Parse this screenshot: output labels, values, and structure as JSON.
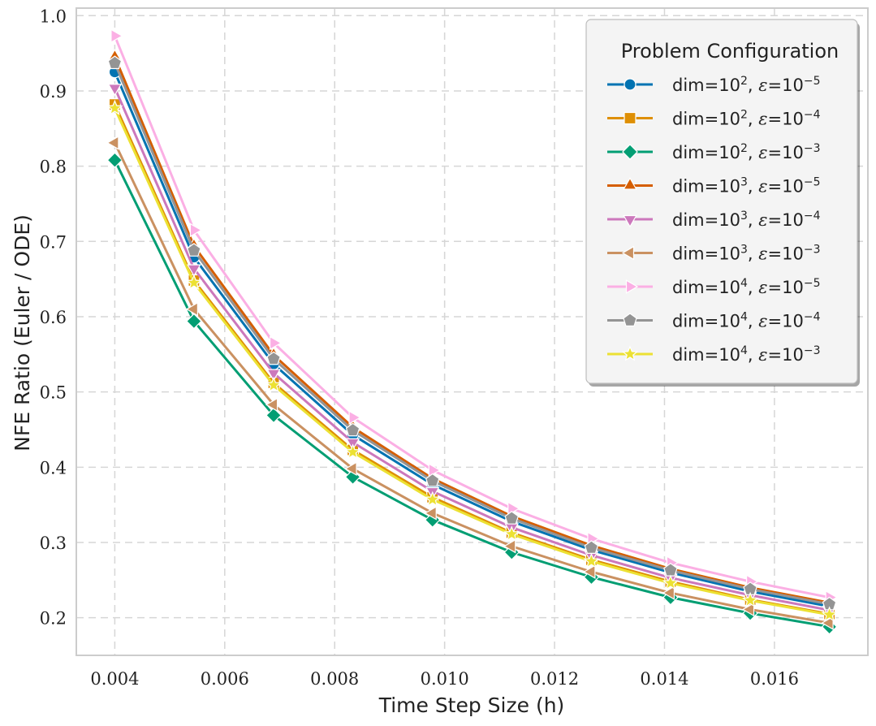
{
  "chart_data": {
    "type": "line",
    "title": "",
    "xlabel": "Time Step Size (h)",
    "ylabel": "NFE Ratio (Euler / ODE)",
    "xlim": [
      0.0033,
      0.0177
    ],
    "ylim": [
      0.15,
      1.01
    ],
    "xticks": [
      0.004,
      0.006,
      0.008,
      0.01,
      0.012,
      0.014,
      0.016
    ],
    "xtick_labels": [
      "0.004",
      "0.006",
      "0.008",
      "0.010",
      "0.012",
      "0.014",
      "0.016"
    ],
    "yticks": [
      0.2,
      0.3,
      0.4,
      0.5,
      0.6,
      0.7,
      0.8,
      0.9,
      1.0
    ],
    "ytick_labels": [
      "0.2",
      "0.3",
      "0.4",
      "0.5",
      "0.6",
      "0.7",
      "0.8",
      "0.9",
      "1.0"
    ],
    "grid": true,
    "legend_title": "Problem Configuration",
    "legend_position": "top-right",
    "x": [
      0.004,
      0.00544,
      0.00689,
      0.00833,
      0.00978,
      0.01122,
      0.01267,
      0.01411,
      0.01556,
      0.017
    ],
    "series": [
      {
        "name": "dim=10², ε=10⁻⁵",
        "dim_exp": "2",
        "eps_exp": "−5",
        "color": "#0173b2",
        "marker": "circle",
        "values": [
          0.925,
          0.679,
          0.537,
          0.443,
          0.377,
          0.328,
          0.29,
          0.26,
          0.235,
          0.215
        ]
      },
      {
        "name": "dim=10², ε=10⁻⁴",
        "dim_exp": "2",
        "eps_exp": "−4",
        "color": "#de8f05",
        "marker": "square",
        "values": [
          0.882,
          0.648,
          0.512,
          0.423,
          0.36,
          0.313,
          0.277,
          0.248,
          0.224,
          0.205
        ]
      },
      {
        "name": "dim=10², ε=10⁻³",
        "dim_exp": "2",
        "eps_exp": "−3",
        "color": "#029e73",
        "marker": "diamond",
        "values": [
          0.808,
          0.594,
          0.469,
          0.387,
          0.33,
          0.287,
          0.254,
          0.227,
          0.206,
          0.188
        ]
      },
      {
        "name": "dim=10³, ε=10⁻⁵",
        "dim_exp": "3",
        "eps_exp": "−5",
        "color": "#d55e00",
        "marker": "triangle-up",
        "values": [
          0.945,
          0.694,
          0.549,
          0.453,
          0.385,
          0.335,
          0.296,
          0.265,
          0.24,
          0.22
        ]
      },
      {
        "name": "dim=10³, ε=10⁻⁴",
        "dim_exp": "3",
        "eps_exp": "−4",
        "color": "#cc78bc",
        "marker": "triangle-down",
        "values": [
          0.904,
          0.664,
          0.525,
          0.433,
          0.368,
          0.32,
          0.283,
          0.253,
          0.23,
          0.21
        ]
      },
      {
        "name": "dim=10³, ε=10⁻³",
        "dim_exp": "3",
        "eps_exp": "−3",
        "color": "#ca9161",
        "marker": "triangle-left",
        "values": [
          0.831,
          0.61,
          0.483,
          0.398,
          0.339,
          0.295,
          0.261,
          0.233,
          0.211,
          0.193
        ]
      },
      {
        "name": "dim=10⁴, ε=10⁻⁵",
        "dim_exp": "4",
        "eps_exp": "−5",
        "color": "#fbafe4",
        "marker": "triangle-right",
        "values": [
          0.973,
          0.715,
          0.565,
          0.466,
          0.396,
          0.345,
          0.305,
          0.273,
          0.248,
          0.227
        ]
      },
      {
        "name": "dim=10⁴, ε=10⁻⁴",
        "dim_exp": "4",
        "eps_exp": "−4",
        "color": "#949494",
        "marker": "pentagon",
        "values": [
          0.937,
          0.688,
          0.544,
          0.449,
          0.382,
          0.332,
          0.293,
          0.263,
          0.238,
          0.218
        ]
      },
      {
        "name": "dim=10⁴, ε=10⁻³",
        "dim_exp": "4",
        "eps_exp": "−3",
        "color": "#ece133",
        "marker": "star",
        "values": [
          0.877,
          0.645,
          0.509,
          0.42,
          0.357,
          0.311,
          0.275,
          0.246,
          0.223,
          0.204
        ]
      }
    ]
  }
}
